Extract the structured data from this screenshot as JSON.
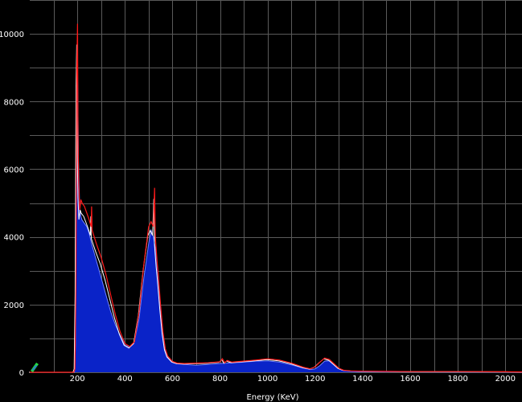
{
  "chart_data": {
    "type": "area",
    "title": "",
    "xlabel": "Energy (KeV)",
    "ylabel": "",
    "xlim": [
      0,
      2070
    ],
    "ylim": [
      0,
      11000
    ],
    "grid": true,
    "x_ticks": [
      "200",
      "400",
      "600",
      "800",
      "1000",
      "1200",
      "1400",
      "1600",
      "1800",
      "2000"
    ],
    "y_ticks": [
      "0",
      "2000",
      "4000",
      "6000",
      "8000",
      "10000"
    ],
    "x_tick_values": [
      200,
      400,
      600,
      800,
      1000,
      1200,
      1400,
      1600,
      1800,
      2000
    ],
    "y_tick_values": [
      0,
      2000,
      4000,
      6000,
      8000,
      10000
    ],
    "colors": {
      "background": "#000000",
      "grid": "#5a5a5a",
      "fill": "#0a23c8",
      "fill_edge": "#6f80ff",
      "line_red": "#ff1a1a",
      "line_white": "#ffffff",
      "marker_green": "#22dd44",
      "marker_blue": "#3355ff"
    },
    "series": [
      {
        "style": "filled-area",
        "x": [
          0,
          180,
          188,
          192,
          196,
          200,
          205,
          210,
          215,
          220,
          230,
          240,
          250,
          260,
          280,
          300,
          320,
          340,
          360,
          380,
          400,
          420,
          440,
          460,
          480,
          500,
          510,
          520,
          530,
          540,
          550,
          560,
          570,
          580,
          600,
          620,
          650,
          700,
          750,
          800,
          850,
          900,
          950,
          1000,
          1050,
          1100,
          1150,
          1180,
          1200,
          1220,
          1240,
          1260,
          1280,
          1300,
          1320,
          1350,
          1400,
          1500,
          1600,
          1800,
          2000,
          2070
        ],
        "values": [
          0,
          0,
          0,
          800,
          6000,
          9700,
          6200,
          4800,
          4600,
          4500,
          4400,
          4300,
          4100,
          3800,
          3300,
          2800,
          2300,
          1800,
          1400,
          1100,
          800,
          750,
          900,
          1600,
          2800,
          3800,
          4200,
          4000,
          3600,
          2800,
          1900,
          1100,
          650,
          450,
          300,
          250,
          230,
          210,
          230,
          260,
          280,
          300,
          330,
          340,
          300,
          220,
          120,
          80,
          100,
          200,
          330,
          340,
          220,
          110,
          50,
          30,
          20,
          15,
          10,
          8,
          5,
          0
        ]
      },
      {
        "style": "line",
        "name": "",
        "x": [
          0,
          185,
          190,
          194,
          198,
          201,
          203,
          206,
          210,
          215,
          220,
          230,
          240,
          250,
          258,
          260,
          262,
          280,
          300,
          320,
          340,
          360,
          380,
          400,
          420,
          440,
          460,
          480,
          500,
          510,
          520,
          525,
          528,
          531,
          535,
          540,
          550,
          560,
          570,
          580,
          600,
          620,
          650,
          700,
          750,
          800,
          810,
          820,
          830,
          850,
          900,
          950,
          1000,
          1050,
          1100,
          1150,
          1180,
          1200,
          1220,
          1240,
          1260,
          1280,
          1300,
          1320,
          1350,
          1400,
          1500,
          1600,
          1800,
          2000,
          2070
        ],
        "values": [
          0,
          0,
          100,
          2500,
          9000,
          10300,
          7000,
          5500,
          4800,
          5100,
          5000,
          4900,
          4700,
          4500,
          4300,
          4900,
          4200,
          3800,
          3400,
          2900,
          2300,
          1700,
          1200,
          850,
          760,
          900,
          1800,
          3200,
          4300,
          4450,
          4300,
          5450,
          4000,
          3700,
          3300,
          2900,
          2000,
          1200,
          700,
          480,
          320,
          270,
          260,
          270,
          280,
          310,
          400,
          280,
          350,
          300,
          330,
          360,
          400,
          360,
          270,
          150,
          100,
          160,
          300,
          420,
          380,
          250,
          120,
          60,
          40,
          30,
          25,
          20,
          18,
          15,
          10
        ]
      }
    ]
  },
  "axis_title": "Energy (KeV)"
}
